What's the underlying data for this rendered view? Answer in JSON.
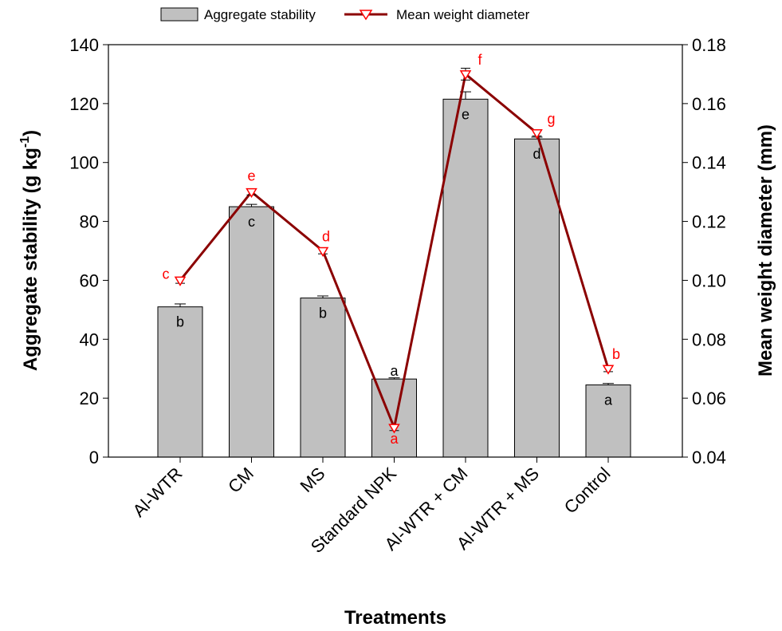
{
  "chart_data": {
    "type": "bar",
    "categories": [
      "Al-WTR",
      "CM",
      "MS",
      "Standard NPK",
      "Al-WTR + CM",
      "Al-WTR + MS",
      "Control"
    ],
    "xlabel": "Treatments",
    "ylabel": {
      "main": "Aggregate stability (g kg",
      "sup": "-1",
      "close": ")"
    },
    "y2label": "Mean weight diameter (mm)",
    "ylim": [
      0,
      140
    ],
    "yticks": [
      "0",
      "20",
      "40",
      "60",
      "80",
      "100",
      "120",
      "140"
    ],
    "y2lim": [
      0.04,
      0.18
    ],
    "y2ticks": [
      "0.04",
      "0.06",
      "0.08",
      "0.10",
      "0.12",
      "0.14",
      "0.16",
      "0.18"
    ],
    "legend": {
      "position": "top",
      "bar_label": "Aggregate stability",
      "line_label": "Mean weight diameter"
    },
    "series": [
      {
        "name": "Aggregate stability",
        "kind": "bar",
        "axis": "left",
        "values": [
          51,
          85,
          54,
          26.5,
          121.5,
          108,
          24.5
        ],
        "errors": [
          1.0,
          0.8,
          0.7,
          0.4,
          2.5,
          0.6,
          0.5
        ],
        "letters": [
          "b",
          "c",
          "b",
          "a",
          "e",
          "d",
          "a"
        ],
        "color": "#c0c0c0"
      },
      {
        "name": "Mean weight diameter",
        "kind": "line",
        "axis": "right",
        "values": [
          0.1,
          0.13,
          0.11,
          0.05,
          0.17,
          0.15,
          0.07
        ],
        "errors": [
          0.001,
          0.001,
          0.001,
          0.001,
          0.002,
          0.001,
          0.001
        ],
        "letters": [
          "c",
          "e",
          "d",
          "a",
          "f",
          "g",
          "b"
        ],
        "color": "#8b0000",
        "letter_color": "#ff0000"
      }
    ]
  }
}
